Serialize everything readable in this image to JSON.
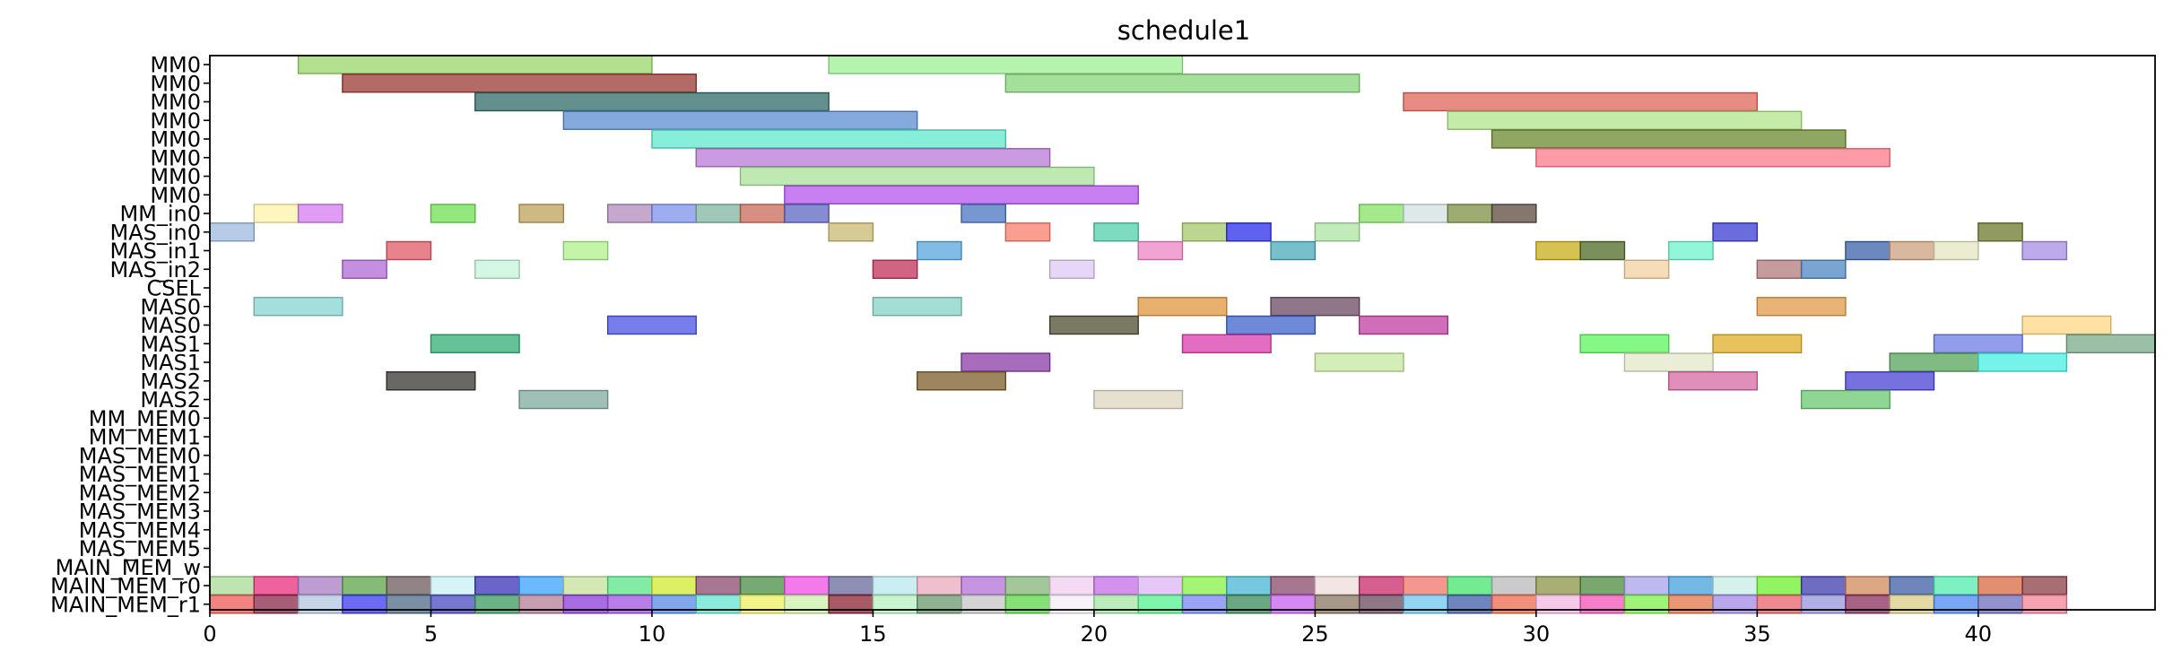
{
  "chart_data": {
    "type": "gantt",
    "title": "schedule1",
    "xlabel": "",
    "ylabel": "",
    "xlim": [
      0,
      44
    ],
    "xticks": [
      0,
      5,
      10,
      15,
      20,
      25,
      30,
      35,
      40
    ],
    "grid": false,
    "rows": [
      "MM0",
      "MM0",
      "MM0",
      "MM0",
      "MM0",
      "MM0",
      "MM0",
      "MM0",
      "MM_in0",
      "MAS_in0",
      "MAS_in1",
      "MAS_in2",
      "CSEL",
      "MAS0",
      "MAS0",
      "MAS1",
      "MAS1",
      "MAS2",
      "MAS2",
      "MM_MEM0",
      "MM_MEM1",
      "MAS_MEM0",
      "MAS_MEM1",
      "MAS_MEM2",
      "MAS_MEM3",
      "MAS_MEM4",
      "MAS_MEM5",
      "MAIN_MEM_w",
      "MAIN_MEM_r0",
      "MAIN_MEM_r1"
    ],
    "tasks": [
      {
        "row": 0,
        "start": 2,
        "end": 10,
        "color": "#9ad66a"
      },
      {
        "row": 0,
        "start": 14,
        "end": 22,
        "color": "#9cf094"
      },
      {
        "row": 1,
        "start": 3,
        "end": 11,
        "color": "#9a3a33"
      },
      {
        "row": 1,
        "start": 18,
        "end": 26,
        "color": "#86d47a"
      },
      {
        "row": 2,
        "start": 6,
        "end": 14,
        "color": "#2f6a66"
      },
      {
        "row": 2,
        "start": 27,
        "end": 35,
        "color": "#e0645a"
      },
      {
        "row": 3,
        "start": 8,
        "end": 16,
        "color": "#5b8cd0"
      },
      {
        "row": 3,
        "start": 28,
        "end": 36,
        "color": "#b0e48a"
      },
      {
        "row": 4,
        "start": 10,
        "end": 18,
        "color": "#5ee8cc"
      },
      {
        "row": 4,
        "start": 29,
        "end": 37,
        "color": "#6a8a2e"
      },
      {
        "row": 5,
        "start": 11,
        "end": 19,
        "color": "#b87ad6"
      },
      {
        "row": 5,
        "start": 30,
        "end": 38,
        "color": "#ff7a88"
      },
      {
        "row": 6,
        "start": 12,
        "end": 20,
        "color": "#a8e29a"
      },
      {
        "row": 7,
        "start": 13,
        "end": 21,
        "color": "#b454ec"
      },
      {
        "row": 8,
        "start": 1,
        "end": 2,
        "color": "#fff2a8"
      },
      {
        "row": 8,
        "start": 2,
        "end": 3,
        "color": "#d67cf0"
      },
      {
        "row": 8,
        "start": 5,
        "end": 6,
        "color": "#6ee050"
      },
      {
        "row": 8,
        "start": 7,
        "end": 8,
        "color": "#bfa25a"
      },
      {
        "row": 8,
        "start": 9,
        "end": 10,
        "color": "#b08cbc"
      },
      {
        "row": 8,
        "start": 10,
        "end": 11,
        "color": "#7c92ea"
      },
      {
        "row": 8,
        "start": 11,
        "end": 12,
        "color": "#80b4a0"
      },
      {
        "row": 8,
        "start": 12,
        "end": 13,
        "color": "#c86a58"
      },
      {
        "row": 8,
        "start": 13,
        "end": 14,
        "color": "#5e66c2"
      },
      {
        "row": 8,
        "start": 17,
        "end": 18,
        "color": "#4a74c0"
      },
      {
        "row": 8,
        "start": 26,
        "end": 27,
        "color": "#86e264"
      },
      {
        "row": 8,
        "start": 27,
        "end": 28,
        "color": "#d2e2e0"
      },
      {
        "row": 8,
        "start": 28,
        "end": 29,
        "color": "#7e9044"
      },
      {
        "row": 8,
        "start": 29,
        "end": 30,
        "color": "#5a4a3e"
      },
      {
        "row": 9,
        "start": 0,
        "end": 1,
        "color": "#9cbae0"
      },
      {
        "row": 9,
        "start": 14,
        "end": 15,
        "color": "#c8ba70"
      },
      {
        "row": 9,
        "start": 18,
        "end": 19,
        "color": "#f87e6e"
      },
      {
        "row": 9,
        "start": 20,
        "end": 21,
        "color": "#52d0aa"
      },
      {
        "row": 9,
        "start": 22,
        "end": 23,
        "color": "#a6c86a"
      },
      {
        "row": 9,
        "start": 23,
        "end": 24,
        "color": "#2a2cea"
      },
      {
        "row": 9,
        "start": 25,
        "end": 26,
        "color": "#ace4a2"
      },
      {
        "row": 9,
        "start": 34,
        "end": 35,
        "color": "#3a3cd4"
      },
      {
        "row": 9,
        "start": 40,
        "end": 41,
        "color": "#6e7a2a"
      },
      {
        "row": 10,
        "start": 4,
        "end": 5,
        "color": "#e05866"
      },
      {
        "row": 10,
        "start": 8,
        "end": 9,
        "color": "#b0f08a"
      },
      {
        "row": 10,
        "start": 16,
        "end": 17,
        "color": "#58a6de"
      },
      {
        "row": 10,
        "start": 21,
        "end": 22,
        "color": "#ec86c6"
      },
      {
        "row": 10,
        "start": 24,
        "end": 25,
        "color": "#4aaab8"
      },
      {
        "row": 10,
        "start": 30,
        "end": 31,
        "color": "#c8ac1a"
      },
      {
        "row": 10,
        "start": 31,
        "end": 32,
        "color": "#4e6a24"
      },
      {
        "row": 10,
        "start": 33,
        "end": 34,
        "color": "#6ef4cc"
      },
      {
        "row": 10,
        "start": 37,
        "end": 38,
        "color": "#3a62a8"
      },
      {
        "row": 10,
        "start": 38,
        "end": 39,
        "color": "#cca080"
      },
      {
        "row": 10,
        "start": 39,
        "end": 40,
        "color": "#e6e6c2"
      },
      {
        "row": 10,
        "start": 41,
        "end": 42,
        "color": "#a68ee4"
      },
      {
        "row": 11,
        "start": 3,
        "end": 4,
        "color": "#b26ad6"
      },
      {
        "row": 11,
        "start": 6,
        "end": 7,
        "color": "#c6f4da"
      },
      {
        "row": 11,
        "start": 15,
        "end": 16,
        "color": "#c23058"
      },
      {
        "row": 11,
        "start": 19,
        "end": 20,
        "color": "#dccaf2"
      },
      {
        "row": 11,
        "start": 32,
        "end": 33,
        "color": "#f0d2a0"
      },
      {
        "row": 11,
        "start": 35,
        "end": 36,
        "color": "#b27a7a"
      },
      {
        "row": 11,
        "start": 36,
        "end": 37,
        "color": "#4e86c2"
      },
      {
        "row": 13,
        "start": 1,
        "end": 3,
        "color": "#86d4d2"
      },
      {
        "row": 13,
        "start": 15,
        "end": 17,
        "color": "#84d2c6"
      },
      {
        "row": 13,
        "start": 21,
        "end": 23,
        "color": "#e0963e"
      },
      {
        "row": 13,
        "start": 24,
        "end": 26,
        "color": "#6a4a62"
      },
      {
        "row": 13,
        "start": 35,
        "end": 37,
        "color": "#e09a48"
      },
      {
        "row": 14,
        "start": 9,
        "end": 11,
        "color": "#4a52e4"
      },
      {
        "row": 14,
        "start": 19,
        "end": 21,
        "color": "#4c4c30"
      },
      {
        "row": 14,
        "start": 23,
        "end": 25,
        "color": "#3e62ca"
      },
      {
        "row": 14,
        "start": 26,
        "end": 28,
        "color": "#c23ea2"
      },
      {
        "row": 14,
        "start": 41,
        "end": 43,
        "color": "#ffd884"
      },
      {
        "row": 15,
        "start": 5,
        "end": 7,
        "color": "#32ae76"
      },
      {
        "row": 15,
        "start": 22,
        "end": 24,
        "color": "#d83cac"
      },
      {
        "row": 15,
        "start": 31,
        "end": 33,
        "color": "#5cf45c"
      },
      {
        "row": 15,
        "start": 34,
        "end": 36,
        "color": "#e0ae26"
      },
      {
        "row": 15,
        "start": 39,
        "end": 41,
        "color": "#6e7ce4"
      },
      {
        "row": 15,
        "start": 42,
        "end": 44,
        "color": "#7aaa8a"
      },
      {
        "row": 16,
        "start": 17,
        "end": 19,
        "color": "#8a3ca6"
      },
      {
        "row": 16,
        "start": 25,
        "end": 27,
        "color": "#c4e89e"
      },
      {
        "row": 16,
        "start": 32,
        "end": 34,
        "color": "#e4e8c8"
      },
      {
        "row": 16,
        "start": 38,
        "end": 40,
        "color": "#56a45a"
      },
      {
        "row": 16,
        "start": 40,
        "end": 42,
        "color": "#46f0e0"
      },
      {
        "row": 17,
        "start": 4,
        "end": 6,
        "color": "#383630"
      },
      {
        "row": 17,
        "start": 16,
        "end": 18,
        "color": "#7c5e2a"
      },
      {
        "row": 17,
        "start": 33,
        "end": 35,
        "color": "#d46aa2"
      },
      {
        "row": 17,
        "start": 37,
        "end": 39,
        "color": "#4a42d4"
      },
      {
        "row": 18,
        "start": 7,
        "end": 9,
        "color": "#80aa9e"
      },
      {
        "row": 18,
        "start": 20,
        "end": 22,
        "color": "#ddd6c0"
      },
      {
        "row": 18,
        "start": 36,
        "end": 38,
        "color": "#6ac872"
      },
      {
        "row": 28,
        "start": 0,
        "end": 1,
        "color": "#a8dc96"
      },
      {
        "row": 28,
        "start": 1,
        "end": 2,
        "color": "#e82e7c"
      },
      {
        "row": 28,
        "start": 2,
        "end": 3,
        "color": "#a87cc4"
      },
      {
        "row": 28,
        "start": 3,
        "end": 4,
        "color": "#5ea44a"
      },
      {
        "row": 28,
        "start": 4,
        "end": 5,
        "color": "#6e5a5e"
      },
      {
        "row": 28,
        "start": 5,
        "end": 6,
        "color": "#c6f0f4"
      },
      {
        "row": 28,
        "start": 6,
        "end": 7,
        "color": "#3a32b8"
      },
      {
        "row": 28,
        "start": 7,
        "end": 8,
        "color": "#3aa2ff"
      },
      {
        "row": 28,
        "start": 8,
        "end": 9,
        "color": "#c6e09a"
      },
      {
        "row": 28,
        "start": 9,
        "end": 10,
        "color": "#58e486"
      },
      {
        "row": 28,
        "start": 10,
        "end": 11,
        "color": "#d2ea2e"
      },
      {
        "row": 28,
        "start": 11,
        "end": 12,
        "color": "#8a4a6e"
      },
      {
        "row": 28,
        "start": 12,
        "end": 13,
        "color": "#4a8c44"
      },
      {
        "row": 28,
        "start": 13,
        "end": 14,
        "color": "#f04ee6"
      },
      {
        "row": 28,
        "start": 14,
        "end": 15,
        "color": "#6a6a9c"
      },
      {
        "row": 28,
        "start": 15,
        "end": 16,
        "color": "#b8e8ee"
      },
      {
        "row": 28,
        "start": 16,
        "end": 17,
        "color": "#e8aabc"
      },
      {
        "row": 28,
        "start": 17,
        "end": 18,
        "color": "#b470d8"
      },
      {
        "row": 28,
        "start": 18,
        "end": 19,
        "color": "#86b478"
      },
      {
        "row": 28,
        "start": 19,
        "end": 20,
        "color": "#f2cef0"
      },
      {
        "row": 28,
        "start": 20,
        "end": 21,
        "color": "#c46ee6"
      },
      {
        "row": 28,
        "start": 21,
        "end": 22,
        "color": "#deb6f6"
      },
      {
        "row": 28,
        "start": 22,
        "end": 23,
        "color": "#86f246"
      },
      {
        "row": 28,
        "start": 23,
        "end": 24,
        "color": "#48b6d4"
      },
      {
        "row": 28,
        "start": 24,
        "end": 25,
        "color": "#8a4a6a"
      },
      {
        "row": 28,
        "start": 25,
        "end": 26,
        "color": "#f0dcdc"
      },
      {
        "row": 28,
        "start": 26,
        "end": 27,
        "color": "#ca2a6a"
      },
      {
        "row": 28,
        "start": 27,
        "end": 28,
        "color": "#f0766a"
      },
      {
        "row": 28,
        "start": 28,
        "end": 29,
        "color": "#46e46e"
      },
      {
        "row": 28,
        "start": 29,
        "end": 30,
        "color": "#bababa"
      },
      {
        "row": 28,
        "start": 30,
        "end": 31,
        "color": "#8a9446"
      },
      {
        "row": 28,
        "start": 31,
        "end": 32,
        "color": "#4c8a3c"
      },
      {
        "row": 28,
        "start": 32,
        "end": 33,
        "color": "#a8a2e8"
      },
      {
        "row": 28,
        "start": 33,
        "end": 34,
        "color": "#46a2de"
      },
      {
        "row": 28,
        "start": 34,
        "end": 35,
        "color": "#c6ece4"
      },
      {
        "row": 28,
        "start": 35,
        "end": 36,
        "color": "#6ef02c"
      },
      {
        "row": 28,
        "start": 36,
        "end": 37,
        "color": "#3e3cae"
      },
      {
        "row": 28,
        "start": 37,
        "end": 38,
        "color": "#d08a5a"
      },
      {
        "row": 28,
        "start": 38,
        "end": 39,
        "color": "#3e5ea4"
      },
      {
        "row": 28,
        "start": 39,
        "end": 40,
        "color": "#52ecae"
      },
      {
        "row": 28,
        "start": 40,
        "end": 41,
        "color": "#d86a40"
      },
      {
        "row": 28,
        "start": 41,
        "end": 42,
        "color": "#8a3e46"
      },
      {
        "row": 29,
        "start": 0,
        "end": 1,
        "color": "#ec5a58"
      },
      {
        "row": 29,
        "start": 1,
        "end": 2,
        "color": "#8a2a4a"
      },
      {
        "row": 29,
        "start": 2,
        "end": 3,
        "color": "#b4c6e0"
      },
      {
        "row": 29,
        "start": 3,
        "end": 4,
        "color": "#3a3af0"
      },
      {
        "row": 29,
        "start": 4,
        "end": 5,
        "color": "#4e6a84"
      },
      {
        "row": 29,
        "start": 5,
        "end": 6,
        "color": "#4a4ac2"
      },
      {
        "row": 29,
        "start": 6,
        "end": 7,
        "color": "#3a9a5e"
      },
      {
        "row": 29,
        "start": 7,
        "end": 8,
        "color": "#b47c96"
      },
      {
        "row": 29,
        "start": 8,
        "end": 9,
        "color": "#8a3ad8"
      },
      {
        "row": 29,
        "start": 9,
        "end": 10,
        "color": "#a052e0"
      },
      {
        "row": 29,
        "start": 10,
        "end": 11,
        "color": "#5a8ae6"
      },
      {
        "row": 29,
        "start": 11,
        "end": 12,
        "color": "#64e6d2"
      },
      {
        "row": 29,
        "start": 12,
        "end": 13,
        "color": "#eef060"
      },
      {
        "row": 29,
        "start": 13,
        "end": 14,
        "color": "#ccf0a8"
      },
      {
        "row": 29,
        "start": 14,
        "end": 15,
        "color": "#8a2232"
      },
      {
        "row": 29,
        "start": 15,
        "end": 16,
        "color": "#b6f0c0"
      },
      {
        "row": 29,
        "start": 16,
        "end": 17,
        "color": "#6a9a6e"
      },
      {
        "row": 29,
        "start": 17,
        "end": 18,
        "color": "#c4c6c4"
      },
      {
        "row": 29,
        "start": 18,
        "end": 19,
        "color": "#5ed44a"
      },
      {
        "row": 29,
        "start": 19,
        "end": 20,
        "color": "#f4eef4"
      },
      {
        "row": 29,
        "start": 20,
        "end": 21,
        "color": "#a6e6a4"
      },
      {
        "row": 29,
        "start": 21,
        "end": 22,
        "color": "#52f28e"
      },
      {
        "row": 29,
        "start": 22,
        "end": 23,
        "color": "#7a84f0"
      },
      {
        "row": 29,
        "start": 23,
        "end": 24,
        "color": "#3a8a5a"
      },
      {
        "row": 29,
        "start": 24,
        "end": 25,
        "color": "#c462ec"
      },
      {
        "row": 29,
        "start": 25,
        "end": 26,
        "color": "#8a7660"
      },
      {
        "row": 29,
        "start": 26,
        "end": 27,
        "color": "#6a4a5e"
      },
      {
        "row": 29,
        "start": 27,
        "end": 28,
        "color": "#6ec6ec"
      },
      {
        "row": 29,
        "start": 28,
        "end": 29,
        "color": "#3e5ca8"
      },
      {
        "row": 29,
        "start": 29,
        "end": 30,
        "color": "#ec6a4e"
      },
      {
        "row": 29,
        "start": 30,
        "end": 31,
        "color": "#f2b8e2"
      },
      {
        "row": 29,
        "start": 31,
        "end": 32,
        "color": "#f252b8"
      },
      {
        "row": 29,
        "start": 32,
        "end": 33,
        "color": "#7ef04a"
      },
      {
        "row": 29,
        "start": 33,
        "end": 34,
        "color": "#e2744a"
      },
      {
        "row": 29,
        "start": 34,
        "end": 35,
        "color": "#a08ae4"
      },
      {
        "row": 29,
        "start": 35,
        "end": 36,
        "color": "#e8626a"
      },
      {
        "row": 29,
        "start": 36,
        "end": 37,
        "color": "#9894dc"
      },
      {
        "row": 29,
        "start": 37,
        "end": 38,
        "color": "#8a2e5e"
      },
      {
        "row": 29,
        "start": 38,
        "end": 39,
        "color": "#d8cc86"
      },
      {
        "row": 29,
        "start": 39,
        "end": 40,
        "color": "#4e8af0"
      },
      {
        "row": 29,
        "start": 40,
        "end": 41,
        "color": "#6e6ebe"
      },
      {
        "row": 29,
        "start": 41,
        "end": 42,
        "color": "#f2839a"
      }
    ]
  }
}
